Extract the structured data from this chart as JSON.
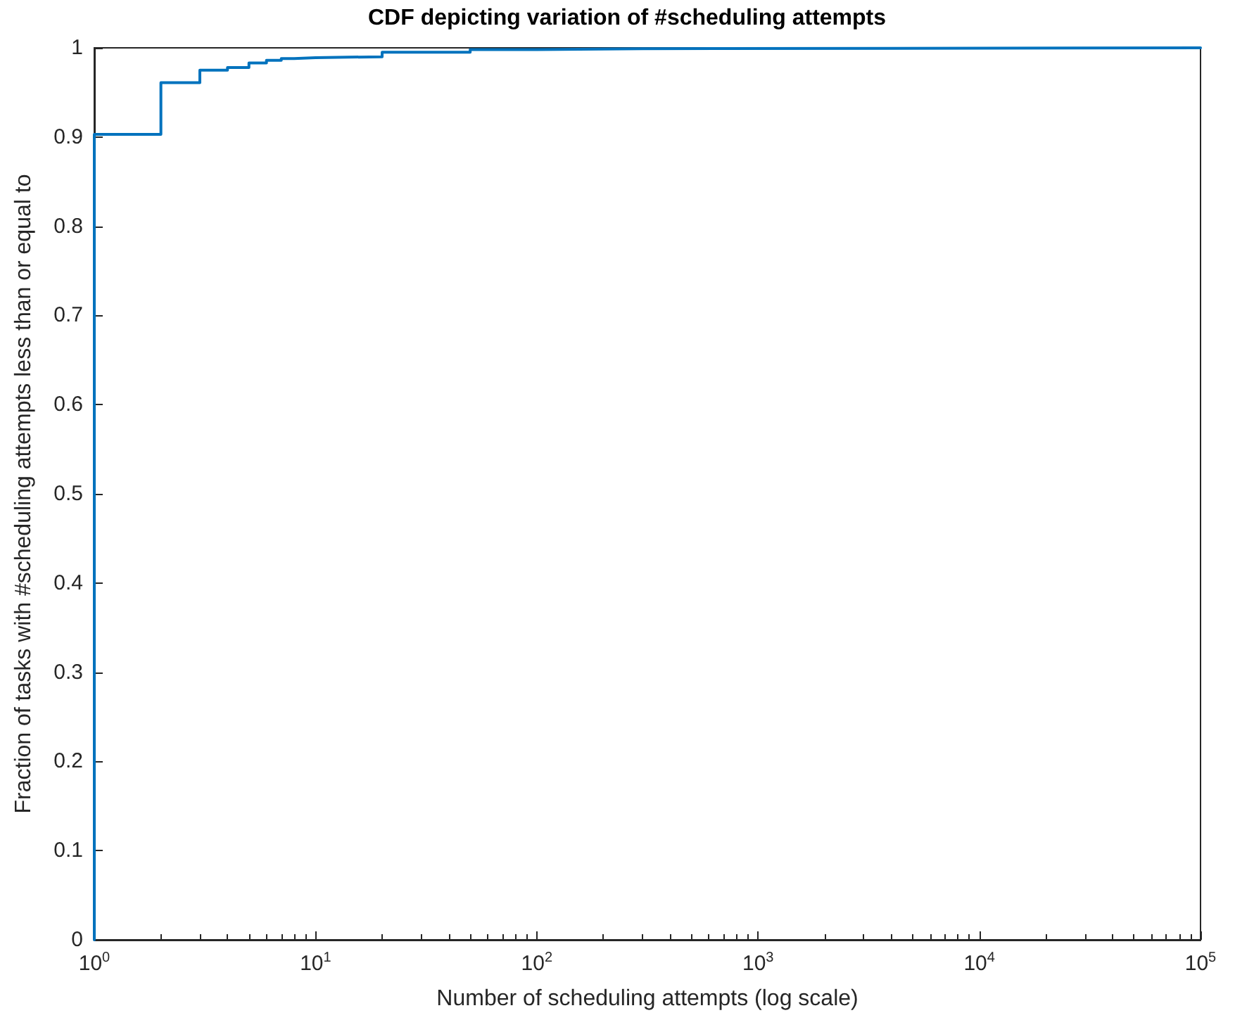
{
  "chart_data": {
    "type": "step",
    "title": "CDF depicting variation of #scheduling attempts",
    "xlabel": "Number of scheduling attempts (log scale)",
    "ylabel": "Fraction of tasks with #scheduling attempts less than or equal to",
    "x": [
      1,
      1,
      2,
      3,
      4,
      5,
      6,
      7,
      8,
      10,
      20,
      50,
      100,
      300,
      100000
    ],
    "series": [
      {
        "color": "#0072bd",
        "values": [
          0,
          0.903,
          0.961,
          0.975,
          0.978,
          0.983,
          0.986,
          0.988,
          0.989,
          0.99,
          0.995,
          0.998,
          0.999,
          1,
          1
        ]
      }
    ],
    "log": "x",
    "xlim": [
      1,
      100000
    ],
    "xticks": [
      {
        "value": 1,
        "label": "10$^{0}$"
      },
      {
        "value": 10,
        "label": "10$^{1}$"
      },
      {
        "value": 100,
        "label": "10$^{2}$"
      },
      {
        "value": 1000,
        "label": "10$^{3}$"
      },
      {
        "value": 10000,
        "label": "10$^{4}$"
      },
      {
        "value": 100000,
        "label": "10$^{5}$"
      }
    ],
    "ylim": [
      0,
      1
    ],
    "yticks": [
      0,
      0.1,
      0.2,
      0.3,
      0.4,
      0.5,
      0.6,
      0.7,
      0.8,
      0.9,
      1
    ],
    "grid": false,
    "marker": "none",
    "line_style": "solid"
  }
}
